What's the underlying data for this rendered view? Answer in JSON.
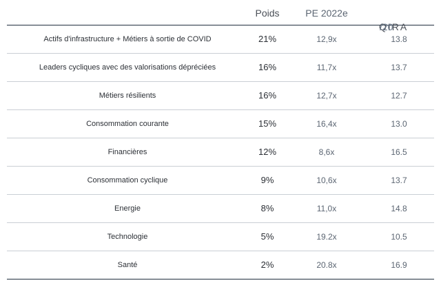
{
  "header": {
    "poids": "Poids",
    "pe": "PE 2022e",
    "qira_logo_text": "QIRA",
    "qira_suffix": "/20"
  },
  "rows": [
    {
      "name": "Actifs d'infrastructure + Métiers à sortie de COVID",
      "poids": "21%",
      "pe": "12,9x",
      "qira": "13.8"
    },
    {
      "name": "Leaders cycliques avec des valorisations dépréciées",
      "poids": "16%",
      "pe": "11,7x",
      "qira": "13.7"
    },
    {
      "name": "Métiers résilients",
      "poids": "16%",
      "pe": "12,7x",
      "qira": "12.7"
    },
    {
      "name": "Consommation courante",
      "poids": "15%",
      "pe": "16,4x",
      "qira": "13.0"
    },
    {
      "name": "Financières",
      "poids": "12%",
      "pe": "8,6x",
      "qira": "16.5"
    },
    {
      "name": "Consommation cyclique",
      "poids": "9%",
      "pe": "10,6x",
      "qira": "13.7"
    },
    {
      "name": "Energie",
      "poids": "8%",
      "pe": "11,0x",
      "qira": "14.8"
    },
    {
      "name": "Technologie",
      "poids": "5%",
      "pe": "19.2x",
      "qira": "10.5"
    },
    {
      "name": "Santé",
      "poids": "2%",
      "pe": "20.8x",
      "qira": "16.9"
    }
  ]
}
